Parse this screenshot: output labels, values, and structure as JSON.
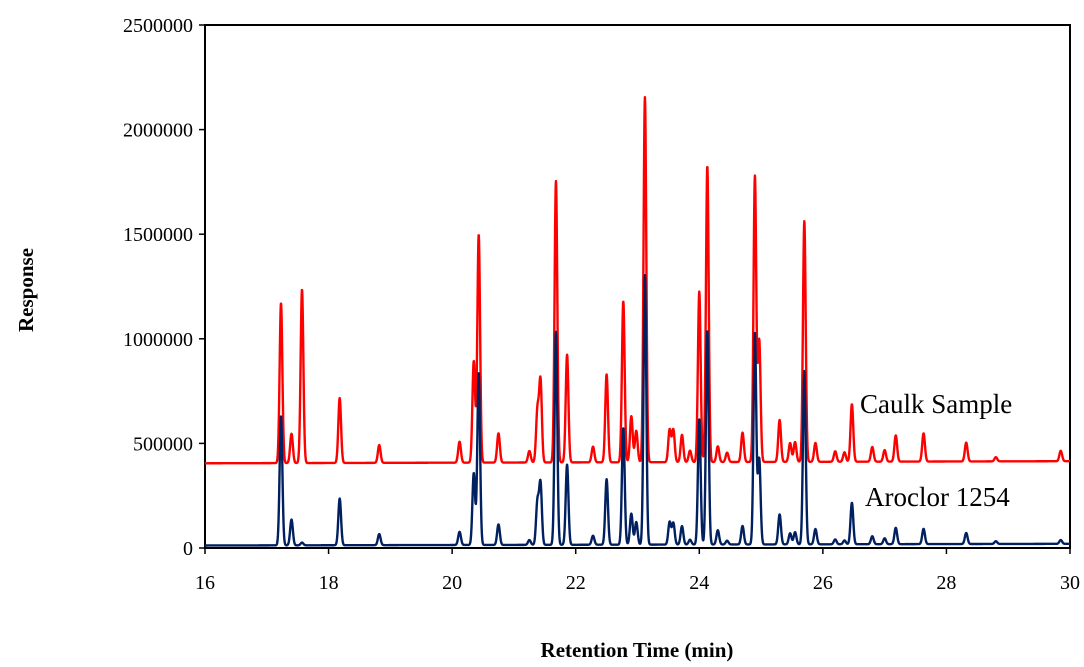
{
  "chart_data": {
    "type": "line",
    "title": "",
    "xlabel": "Retention Time (min)",
    "ylabel": "Response",
    "xlim": [
      16,
      30
    ],
    "ylim": [
      0,
      2500000
    ],
    "x_ticks": [
      16,
      18,
      20,
      22,
      24,
      26,
      28,
      30
    ],
    "y_ticks": [
      0,
      500000,
      1000000,
      1500000,
      2000000,
      2500000
    ],
    "grid": false,
    "legend": "none",
    "annotations": [
      {
        "text": "Caulk Sample",
        "series": "Caulk Sample"
      },
      {
        "text": "Aroclor 1254",
        "series": "Aroclor 1254"
      }
    ],
    "series": [
      {
        "name": "Caulk Sample",
        "color": "#ff0000",
        "baseline": 405000,
        "baseline_end": 415000,
        "peaks": [
          [
            17.23,
            1170000
          ],
          [
            17.4,
            545000
          ],
          [
            17.57,
            1235000
          ],
          [
            18.18,
            715000
          ],
          [
            18.82,
            490000
          ],
          [
            20.12,
            505000
          ],
          [
            20.35,
            890000
          ],
          [
            20.43,
            1495000
          ],
          [
            20.75,
            545000
          ],
          [
            21.25,
            460000
          ],
          [
            21.38,
            650000
          ],
          [
            21.43,
            795000
          ],
          [
            21.68,
            1750000
          ],
          [
            21.86,
            920000
          ],
          [
            22.28,
            480000
          ],
          [
            22.5,
            825000
          ],
          [
            22.77,
            1175000
          ],
          [
            22.9,
            625000
          ],
          [
            22.98,
            555000
          ],
          [
            23.12,
            2150000
          ],
          [
            23.52,
            560000
          ],
          [
            23.58,
            560000
          ],
          [
            23.72,
            535000
          ],
          [
            23.85,
            460000
          ],
          [
            24.0,
            1220000
          ],
          [
            24.13,
            1820000
          ],
          [
            24.3,
            480000
          ],
          [
            24.45,
            450000
          ],
          [
            24.7,
            545000
          ],
          [
            24.9,
            1770000
          ],
          [
            24.97,
            985000
          ],
          [
            25.3,
            605000
          ],
          [
            25.47,
            495000
          ],
          [
            25.55,
            500000
          ],
          [
            25.7,
            1555000
          ],
          [
            25.88,
            495000
          ],
          [
            26.2,
            455000
          ],
          [
            26.35,
            450000
          ],
          [
            26.47,
            680000
          ],
          [
            26.8,
            475000
          ],
          [
            27.0,
            460000
          ],
          [
            27.18,
            530000
          ],
          [
            27.63,
            540000
          ],
          [
            28.32,
            495000
          ],
          [
            28.8,
            425000
          ],
          [
            29.85,
            455000
          ]
        ]
      },
      {
        "name": "Aroclor 1254",
        "color": "#002060",
        "baseline": 12000,
        "baseline_end": 20000,
        "peaks": [
          [
            17.23,
            630000
          ],
          [
            17.4,
            135000
          ],
          [
            17.57,
            25000
          ],
          [
            18.18,
            235000
          ],
          [
            18.82,
            65000
          ],
          [
            20.12,
            75000
          ],
          [
            20.35,
            355000
          ],
          [
            20.43,
            835000
          ],
          [
            20.75,
            110000
          ],
          [
            21.25,
            35000
          ],
          [
            21.38,
            215000
          ],
          [
            21.43,
            305000
          ],
          [
            21.68,
            1030000
          ],
          [
            21.86,
            395000
          ],
          [
            22.28,
            55000
          ],
          [
            22.5,
            325000
          ],
          [
            22.77,
            570000
          ],
          [
            22.9,
            160000
          ],
          [
            22.98,
            120000
          ],
          [
            23.12,
            1300000
          ],
          [
            23.52,
            120000
          ],
          [
            23.58,
            115000
          ],
          [
            23.72,
            100000
          ],
          [
            23.85,
            35000
          ],
          [
            24.0,
            610000
          ],
          [
            24.13,
            1035000
          ],
          [
            24.3,
            80000
          ],
          [
            24.45,
            30000
          ],
          [
            24.7,
            100000
          ],
          [
            24.9,
            1020000
          ],
          [
            24.97,
            420000
          ],
          [
            25.3,
            155000
          ],
          [
            25.47,
            65000
          ],
          [
            25.55,
            70000
          ],
          [
            25.7,
            840000
          ],
          [
            25.88,
            85000
          ],
          [
            26.2,
            35000
          ],
          [
            26.35,
            30000
          ],
          [
            26.47,
            210000
          ],
          [
            26.8,
            50000
          ],
          [
            27.0,
            40000
          ],
          [
            27.18,
            90000
          ],
          [
            27.63,
            85000
          ],
          [
            28.32,
            65000
          ],
          [
            28.8,
            25000
          ],
          [
            29.85,
            30000
          ]
        ]
      }
    ]
  }
}
